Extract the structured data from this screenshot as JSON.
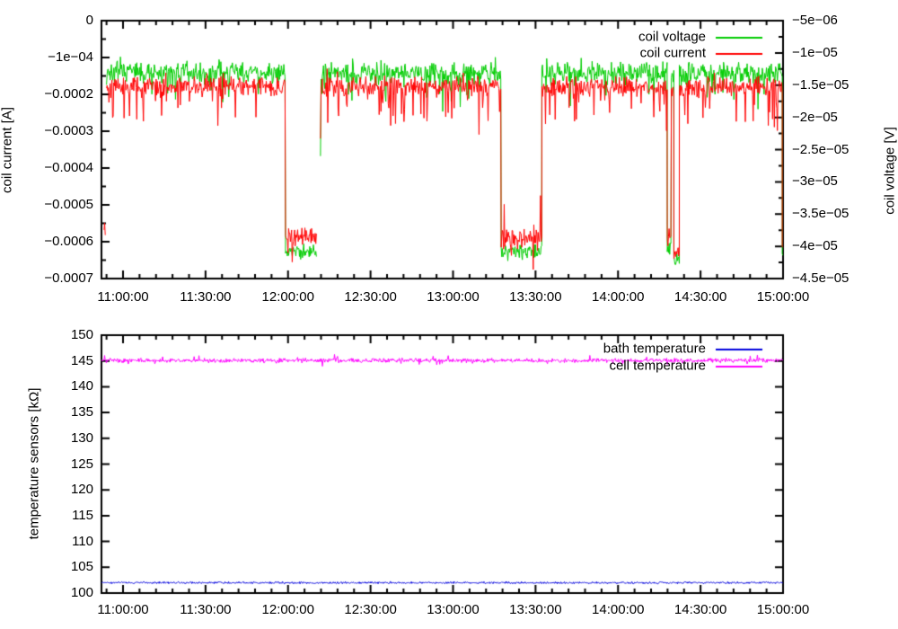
{
  "chart_data": [
    {
      "type": "line",
      "title": "",
      "x": {
        "tick_labels": [
          "11:00:00",
          "11:30:00",
          "12:00:00",
          "12:30:00",
          "13:00:00",
          "13:30:00",
          "14:00:00",
          "14:30:00",
          "15:00:00"
        ],
        "tick_minutes": [
          0,
          30,
          60,
          90,
          120,
          150,
          180,
          210,
          240
        ],
        "minor_step_min": 6
      },
      "y_left": {
        "label": "coil current [A]",
        "tick_labels": [
          "0",
          "−1e−04",
          "−0.0002",
          "−0.0003",
          "−0.0004",
          "−0.0005",
          "−0.0006",
          "−0.0007"
        ],
        "tick_values": [
          0,
          -0.0001,
          -0.0002,
          -0.0003,
          -0.0004,
          -0.0005,
          -0.0006,
          -0.0007
        ],
        "minor_divisions": 2
      },
      "y_right": {
        "label": "coil voltage [V]",
        "tick_labels": [
          "−5e−06",
          "−1e−05",
          "−1.5e−05",
          "−2e−05",
          "−2.5e−05",
          "−3e−05",
          "−3.5e−05",
          "−4e−05",
          "−4.5e−05"
        ],
        "tick_values": [
          -5e-06,
          -1e-05,
          -1.5e-05,
          -2e-05,
          -2.5e-05,
          -3e-05,
          -3.5e-05,
          -4e-05,
          -4.5e-05
        ],
        "minor_divisions": 2
      },
      "legend": [
        {
          "label": "coil voltage",
          "color": "#00cc00"
        },
        {
          "label": "coil current",
          "color": "#ff0000"
        }
      ],
      "series": [
        {
          "name": "coil voltage",
          "axis": "right",
          "color": "#00cc00",
          "seed": 7,
          "segments": [
            {
              "t0": -6.0,
              "t1": 59.1,
              "base": -1.31e-05,
              "noise": 2e-06,
              "sp": -4.5e-06,
              "spp": 0.08,
              "su": 1.5e-06,
              "sup": 0.05
            },
            {
              "t0": 59.1,
              "t1": 70.5,
              "base": -4.07e-05,
              "noise": 1.4e-06,
              "sp": -1.6e-06,
              "spp": 0.06
            },
            {
              "t0": 71.8,
              "t1": 137.5,
              "base": -1.31e-05,
              "noise": 2e-06,
              "sp": -4.5e-06,
              "spp": 0.08,
              "su": 1.5e-06,
              "sup": 0.05,
              "v0": -2.6e-05
            },
            {
              "t0": 137.5,
              "t1": 152.3,
              "base": -4.08e-05,
              "noise": 1.5e-06,
              "sp": -1.8e-06,
              "spp": 0.06
            },
            {
              "t0": 152.3,
              "t1": 197.9,
              "base": -1.31e-05,
              "noise": 2e-06,
              "sp": -4.5e-06,
              "spp": 0.08,
              "su": 1.5e-06,
              "sup": 0.05
            },
            {
              "t0": 197.9,
              "t1": 199.4,
              "base": -4e-05,
              "noise": 1.5e-06
            },
            {
              "t0": 199.4,
              "t1": 200.3,
              "base": -1.35e-05,
              "noise": 2e-06
            },
            {
              "t0": 200.3,
              "t1": 202.3,
              "base": -4.2e-05,
              "noise": 1.2e-06
            },
            {
              "t0": 202.3,
              "t1": 239.7,
              "base": -1.31e-05,
              "noise": 2e-06,
              "sp": -4.5e-06,
              "spp": 0.08,
              "su": 1.5e-06,
              "sup": 0.05
            },
            {
              "t0": 239.7,
              "t1": 240.0,
              "base": -4.15e-05,
              "noise": 1e-06
            }
          ]
        },
        {
          "name": "coil current",
          "axis": "left",
          "color": "#ff0000",
          "seed": 42,
          "segments": [
            {
              "t0": -6.9,
              "t1": -6.4,
              "base": -0.00057,
              "noise": 4e-05
            },
            {
              "t0": -6.0,
              "t1": 59.1,
              "base": -0.00018,
              "noise": 3.2e-05,
              "sp": -0.000105,
              "spp": 0.1,
              "su": 2.5e-05,
              "sup": 0.06
            },
            {
              "t0": 59.1,
              "t1": 70.5,
              "base": -0.000585,
              "noise": 3e-05,
              "sp": -6e-05,
              "spp": 0.07,
              "su": 0.00016,
              "sup": 0.02
            },
            {
              "t0": 71.8,
              "t1": 137.5,
              "base": -0.00018,
              "noise": 3.2e-05,
              "sp": -0.000105,
              "spp": 0.1,
              "su": 2.5e-05,
              "sup": 0.06,
              "v0": -0.00032
            },
            {
              "t0": 137.5,
              "t1": 152.3,
              "base": -0.00059,
              "noise": 3.8e-05,
              "sp": -7e-05,
              "spp": 0.08,
              "su": 0.00013,
              "sup": 0.03
            },
            {
              "t0": 152.3,
              "t1": 197.9,
              "base": -0.00018,
              "noise": 3.2e-05,
              "sp": -0.000105,
              "spp": 0.1,
              "su": 2.5e-05,
              "sup": 0.06
            },
            {
              "t0": 197.9,
              "t1": 199.4,
              "base": -0.00059,
              "noise": 3e-05
            },
            {
              "t0": 199.4,
              "t1": 200.3,
              "base": -0.00019,
              "noise": 3e-05
            },
            {
              "t0": 200.3,
              "t1": 202.3,
              "base": -0.000635,
              "noise": 2.2e-05
            },
            {
              "t0": 202.3,
              "t1": 239.7,
              "base": -0.00018,
              "noise": 3.2e-05,
              "sp": -0.000105,
              "spp": 0.1,
              "su": 2.5e-05,
              "sup": 0.06
            },
            {
              "t0": 239.7,
              "t1": 240.0,
              "base": -0.00061,
              "noise": 2e-05
            }
          ]
        }
      ]
    },
    {
      "type": "line",
      "title": "",
      "x": {
        "tick_labels": [
          "11:00:00",
          "11:30:00",
          "12:00:00",
          "12:30:00",
          "13:00:00",
          "13:30:00",
          "14:00:00",
          "14:30:00",
          "15:00:00"
        ],
        "tick_minutes": [
          0,
          30,
          60,
          90,
          120,
          150,
          180,
          210,
          240
        ],
        "minor_step_min": 6
      },
      "y_left": {
        "label": "temperature sensors [kΩ]",
        "tick_labels": [
          "150",
          "145",
          "140",
          "135",
          "130",
          "125",
          "120",
          "115",
          "110",
          "105",
          "100"
        ],
        "tick_values": [
          150,
          145,
          140,
          135,
          130,
          125,
          120,
          115,
          110,
          105,
          100
        ],
        "minor_divisions": 1
      },
      "y_right": null,
      "legend": [
        {
          "label": "bath temperature",
          "color": "#0000dd"
        },
        {
          "label": "cell temperature",
          "color": "#ff00ff"
        }
      ],
      "series": [
        {
          "name": "bath temperature",
          "axis": "left",
          "color": "#0000dd",
          "seed": 9,
          "segments": [
            {
              "t0": -7.8,
              "t1": 240.0,
              "base": 102.0,
              "noise": 0.25
            }
          ]
        },
        {
          "name": "cell temperature",
          "axis": "left",
          "color": "#ff00ff",
          "seed": 3,
          "segments": [
            {
              "t0": -7.8,
              "t1": 240.0,
              "base": 145.1,
              "noise": 0.5,
              "sp": -0.9,
              "spp": 0.03,
              "su": 0.9,
              "sup": 0.03
            }
          ]
        }
      ]
    }
  ]
}
